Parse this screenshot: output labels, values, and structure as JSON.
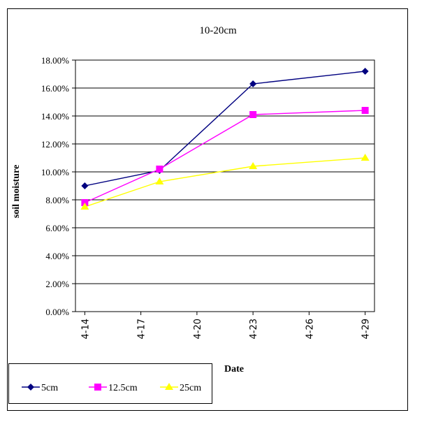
{
  "chart_data": {
    "type": "line",
    "title": "10-20cm",
    "xlabel": "Date",
    "ylabel": "soil moisture",
    "x_ticks": [
      "4-14",
      "4-17",
      "4-20",
      "4-23",
      "4-26",
      "4-29"
    ],
    "y_ticks": [
      "0.00%",
      "2.00%",
      "4.00%",
      "6.00%",
      "8.00%",
      "10.00%",
      "12.00%",
      "14.00%",
      "16.00%",
      "18.00%"
    ],
    "ylim": [
      0,
      18
    ],
    "grid": "horizontal",
    "legend_position": "bottom-left",
    "series": [
      {
        "name": "5cm",
        "color": "#000080",
        "marker": "diamond",
        "x": [
          "4-14",
          "4-18",
          "4-23",
          "4-29"
        ],
        "y": [
          9.0,
          10.1,
          16.3,
          17.2
        ]
      },
      {
        "name": "12.5cm",
        "color": "#ff00ff",
        "marker": "square",
        "x": [
          "4-14",
          "4-18",
          "4-23",
          "4-29"
        ],
        "y": [
          7.8,
          10.2,
          14.1,
          14.4
        ]
      },
      {
        "name": "25cm",
        "color": "#ffff00",
        "marker": "triangle",
        "x": [
          "4-14",
          "4-18",
          "4-23",
          "4-29"
        ],
        "y": [
          7.5,
          9.3,
          10.4,
          11.0
        ]
      }
    ]
  }
}
